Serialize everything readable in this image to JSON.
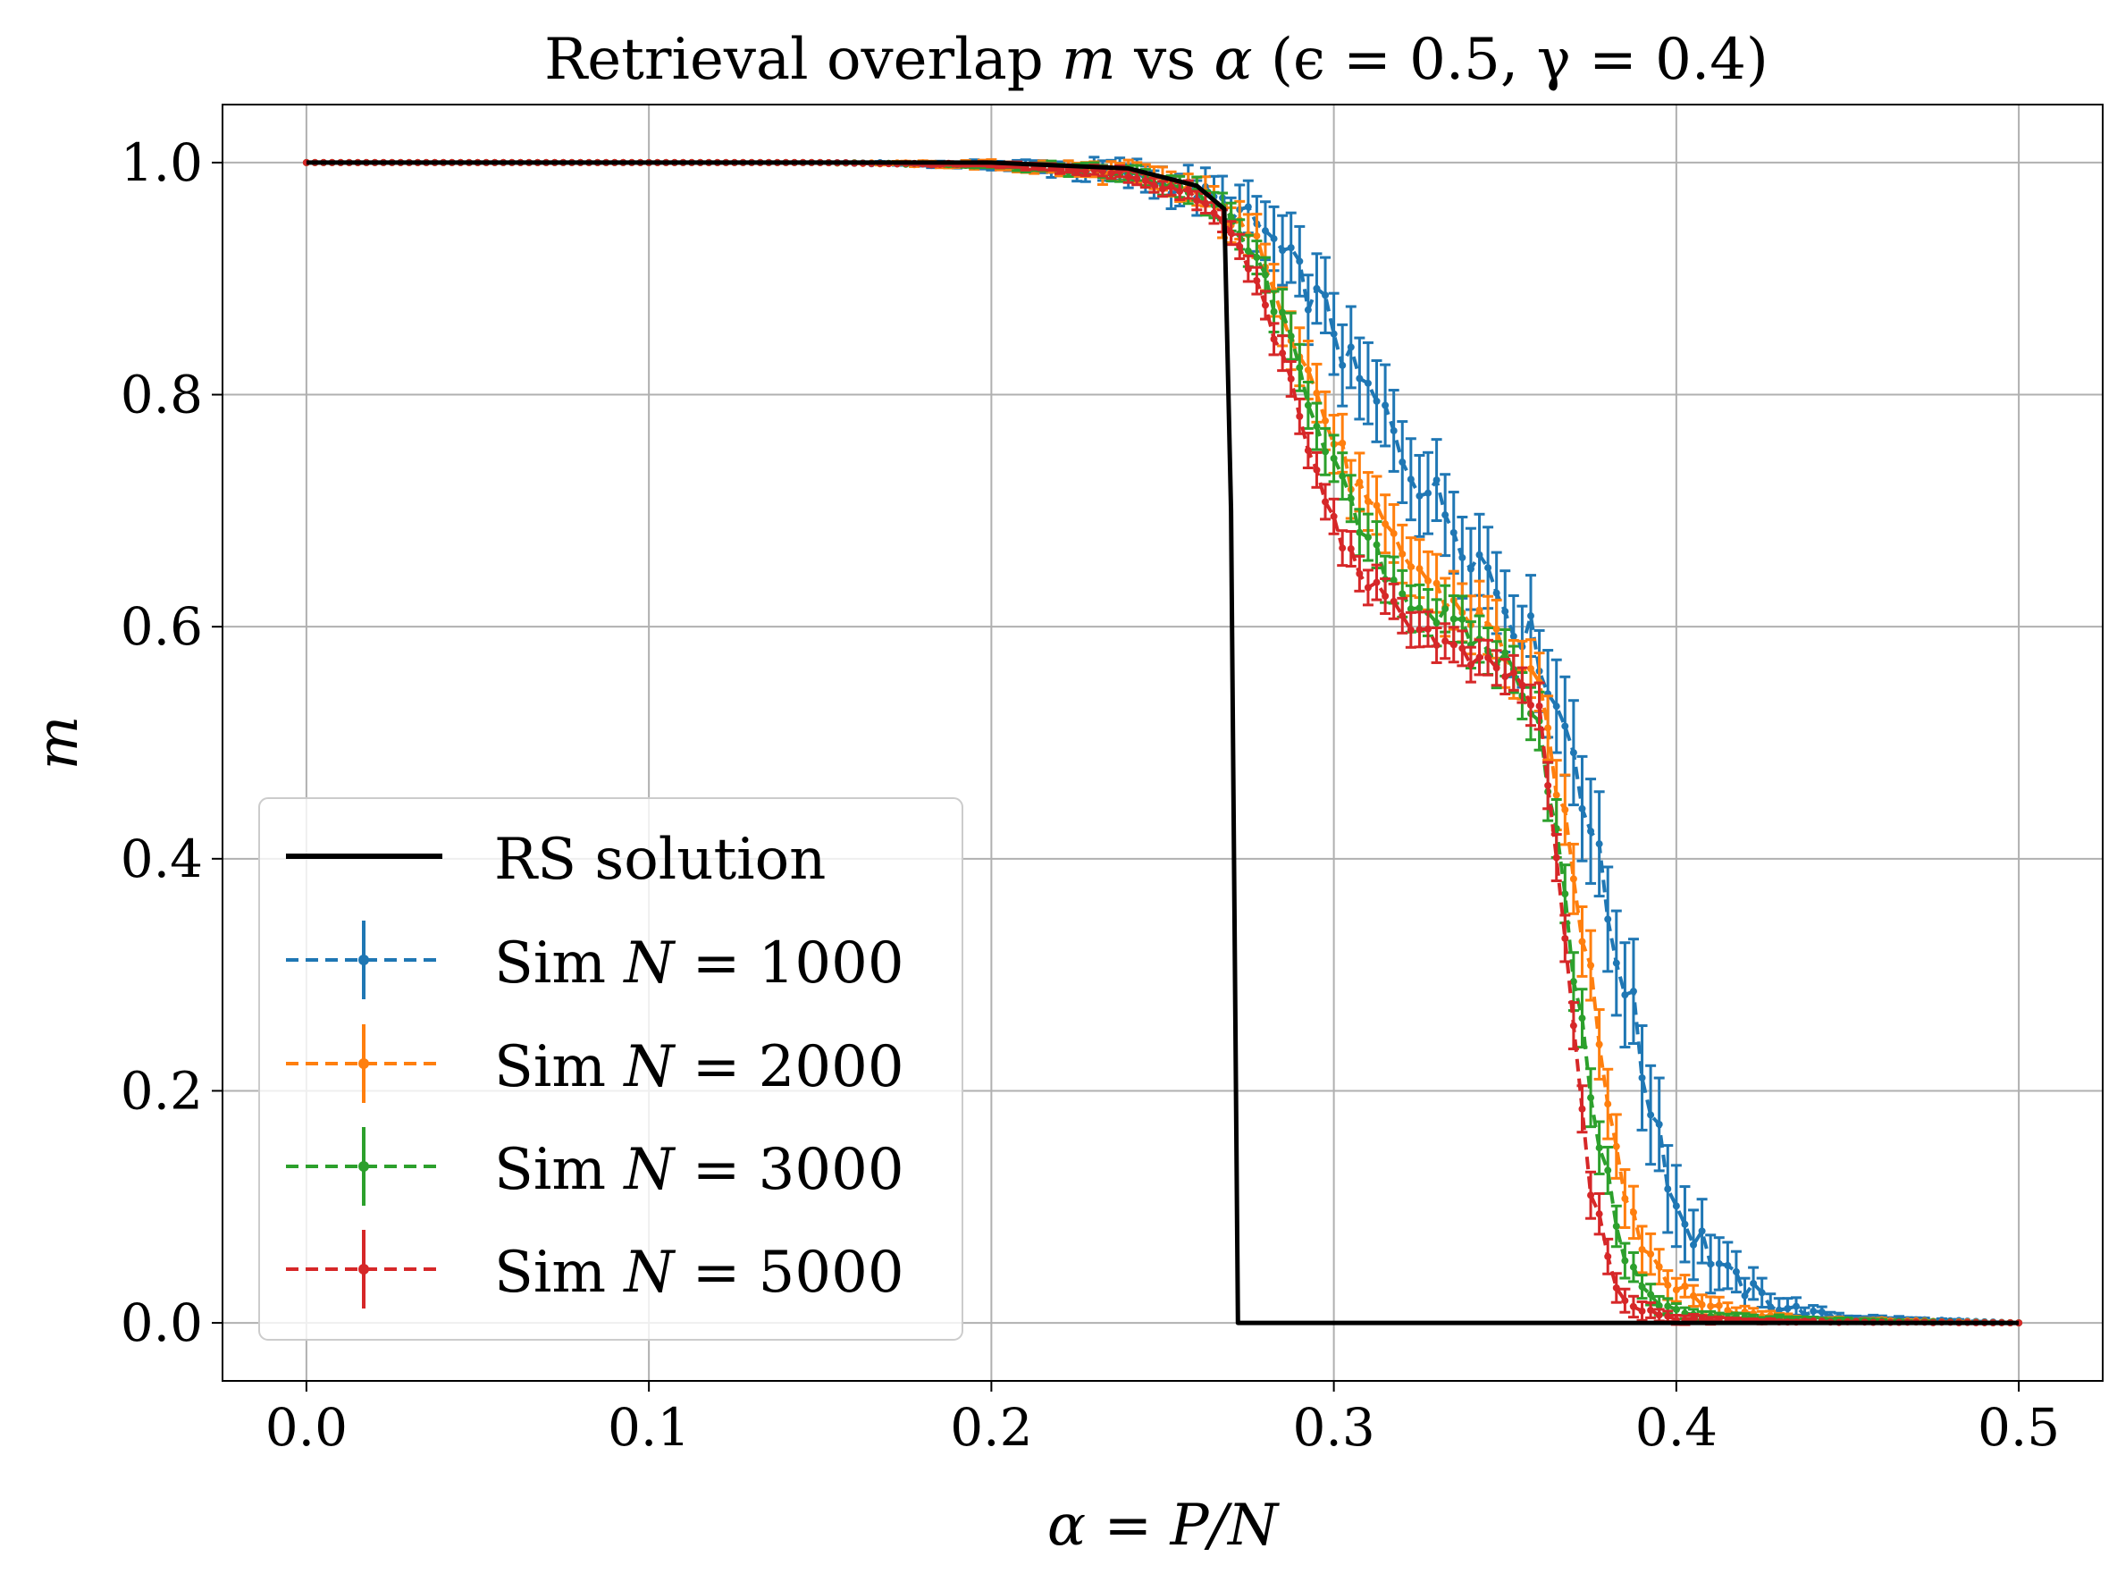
{
  "chart_data": {
    "type": "line",
    "title": {
      "text": "Retrieval overlap m vs α (ϵ = 0.5, γ = 0.4)",
      "prefix": "Retrieval overlap ",
      "var_m": "m",
      "vs": " vs ",
      "var_alpha": "α",
      "params": " (ϵ = 0.5, γ = 0.4)"
    },
    "xlabel": "α = P/N",
    "ylabel": "m",
    "xlim": [
      -0.0245,
      0.5245
    ],
    "ylim": [
      -0.05,
      1.05
    ],
    "xticks": [
      0.0,
      0.1,
      0.2,
      0.3,
      0.4,
      0.5
    ],
    "xtick_labels": [
      "0.0",
      "0.1",
      "0.2",
      "0.3",
      "0.4",
      "0.5"
    ],
    "yticks": [
      0.0,
      0.2,
      0.4,
      0.6,
      0.8,
      1.0
    ],
    "ytick_labels": [
      "0.0",
      "0.2",
      "0.4",
      "0.6",
      "0.8",
      "1.0"
    ],
    "grid": true,
    "legend_position": "lower-left",
    "colors": {
      "rs": "#000000",
      "n1000": "#1f77b4",
      "n2000": "#ff7f0e",
      "n3000": "#2ca02c",
      "n5000": "#d62728",
      "grid": "#b0b0b0"
    },
    "rs_solution": {
      "name": "RS solution",
      "x": [
        0.0,
        0.1,
        0.2,
        0.24,
        0.26,
        0.266,
        0.268,
        0.27,
        0.272,
        0.3,
        0.4,
        0.5
      ],
      "y": [
        1.0,
        1.0,
        1.0,
        0.995,
        0.98,
        0.965,
        0.96,
        0.7,
        0.0,
        0.0,
        0.0,
        0.0
      ]
    },
    "series": [
      {
        "name": "Sim N = 1000",
        "legend_prefix": "Sim ",
        "legend_var": "N",
        "legend_value": " = 1000",
        "color_key": "n1000",
        "x": [
          0.0,
          0.05,
          0.1,
          0.15,
          0.2,
          0.22,
          0.24,
          0.26,
          0.27,
          0.28,
          0.285,
          0.29,
          0.295,
          0.3,
          0.305,
          0.31,
          0.315,
          0.32,
          0.325,
          0.33,
          0.335,
          0.34,
          0.345,
          0.35,
          0.355,
          0.36,
          0.365,
          0.37,
          0.375,
          0.38,
          0.385,
          0.39,
          0.395,
          0.4,
          0.405,
          0.41,
          0.415,
          0.42,
          0.43,
          0.44,
          0.45,
          0.5
        ],
        "y": [
          1.0,
          1.0,
          1.0,
          1.0,
          0.998,
          0.995,
          0.99,
          0.975,
          0.96,
          0.94,
          0.92,
          0.9,
          0.88,
          0.86,
          0.82,
          0.8,
          0.78,
          0.75,
          0.73,
          0.71,
          0.69,
          0.67,
          0.65,
          0.62,
          0.6,
          0.58,
          0.53,
          0.5,
          0.43,
          0.35,
          0.3,
          0.22,
          0.17,
          0.1,
          0.08,
          0.06,
          0.04,
          0.03,
          0.015,
          0.008,
          0.004,
          0.0
        ],
        "err": [
          0.0,
          0.0,
          0.0,
          0.0,
          0.003,
          0.006,
          0.01,
          0.015,
          0.02,
          0.025,
          0.03,
          0.03,
          0.03,
          0.035,
          0.035,
          0.035,
          0.035,
          0.035,
          0.035,
          0.035,
          0.035,
          0.035,
          0.035,
          0.035,
          0.035,
          0.035,
          0.04,
          0.045,
          0.045,
          0.045,
          0.045,
          0.045,
          0.04,
          0.035,
          0.03,
          0.025,
          0.02,
          0.015,
          0.01,
          0.005,
          0.003,
          0.0
        ]
      },
      {
        "name": "Sim N = 2000",
        "legend_prefix": "Sim ",
        "legend_var": "N",
        "legend_value": " = 2000",
        "color_key": "n2000",
        "x": [
          0.0,
          0.05,
          0.1,
          0.15,
          0.2,
          0.22,
          0.24,
          0.26,
          0.27,
          0.28,
          0.285,
          0.29,
          0.295,
          0.3,
          0.305,
          0.31,
          0.315,
          0.32,
          0.325,
          0.33,
          0.335,
          0.34,
          0.345,
          0.35,
          0.355,
          0.36,
          0.365,
          0.37,
          0.375,
          0.38,
          0.385,
          0.39,
          0.395,
          0.4,
          0.41,
          0.42,
          0.44,
          0.5
        ],
        "y": [
          1.0,
          1.0,
          1.0,
          1.0,
          0.998,
          0.995,
          0.99,
          0.975,
          0.95,
          0.92,
          0.88,
          0.84,
          0.8,
          0.76,
          0.73,
          0.7,
          0.68,
          0.66,
          0.65,
          0.63,
          0.62,
          0.61,
          0.6,
          0.58,
          0.56,
          0.54,
          0.47,
          0.38,
          0.3,
          0.2,
          0.12,
          0.07,
          0.05,
          0.03,
          0.015,
          0.008,
          0.003,
          0.0
        ],
        "err": [
          0.0,
          0.0,
          0.0,
          0.0,
          0.003,
          0.005,
          0.008,
          0.012,
          0.015,
          0.02,
          0.025,
          0.025,
          0.025,
          0.025,
          0.025,
          0.025,
          0.025,
          0.025,
          0.025,
          0.025,
          0.025,
          0.025,
          0.025,
          0.025,
          0.025,
          0.025,
          0.03,
          0.03,
          0.03,
          0.03,
          0.025,
          0.02,
          0.015,
          0.01,
          0.008,
          0.005,
          0.002,
          0.0
        ]
      },
      {
        "name": "Sim N = 3000",
        "legend_prefix": "Sim ",
        "legend_var": "N",
        "legend_value": " = 3000",
        "color_key": "n3000",
        "x": [
          0.0,
          0.05,
          0.1,
          0.15,
          0.2,
          0.22,
          0.24,
          0.26,
          0.27,
          0.28,
          0.285,
          0.29,
          0.295,
          0.3,
          0.305,
          0.31,
          0.315,
          0.32,
          0.325,
          0.33,
          0.335,
          0.34,
          0.345,
          0.35,
          0.355,
          0.36,
          0.365,
          0.37,
          0.375,
          0.38,
          0.385,
          0.39,
          0.395,
          0.4,
          0.41,
          0.42,
          0.44,
          0.5
        ],
        "y": [
          1.0,
          1.0,
          1.0,
          1.0,
          0.998,
          0.995,
          0.99,
          0.975,
          0.95,
          0.9,
          0.86,
          0.82,
          0.78,
          0.74,
          0.7,
          0.67,
          0.65,
          0.63,
          0.62,
          0.61,
          0.6,
          0.59,
          0.58,
          0.57,
          0.55,
          0.52,
          0.42,
          0.3,
          0.2,
          0.12,
          0.06,
          0.03,
          0.015,
          0.01,
          0.006,
          0.004,
          0.002,
          0.0
        ],
        "err": [
          0.0,
          0.0,
          0.0,
          0.0,
          0.002,
          0.004,
          0.006,
          0.01,
          0.012,
          0.015,
          0.02,
          0.02,
          0.02,
          0.02,
          0.02,
          0.02,
          0.02,
          0.02,
          0.02,
          0.02,
          0.02,
          0.02,
          0.02,
          0.02,
          0.02,
          0.025,
          0.025,
          0.025,
          0.025,
          0.02,
          0.015,
          0.01,
          0.008,
          0.005,
          0.004,
          0.003,
          0.002,
          0.0
        ]
      },
      {
        "name": "Sim N = 5000",
        "legend_prefix": "Sim ",
        "legend_var": "N",
        "legend_value": " = 5000",
        "color_key": "n5000",
        "x": [
          0.0,
          0.05,
          0.1,
          0.15,
          0.2,
          0.22,
          0.24,
          0.26,
          0.27,
          0.28,
          0.285,
          0.29,
          0.295,
          0.3,
          0.305,
          0.31,
          0.315,
          0.32,
          0.325,
          0.33,
          0.335,
          0.34,
          0.345,
          0.35,
          0.355,
          0.36,
          0.365,
          0.37,
          0.375,
          0.38,
          0.385,
          0.39,
          0.395,
          0.4,
          0.41,
          0.42,
          0.44,
          0.5
        ],
        "y": [
          1.0,
          1.0,
          1.0,
          1.0,
          0.998,
          0.995,
          0.99,
          0.97,
          0.94,
          0.88,
          0.83,
          0.78,
          0.73,
          0.69,
          0.66,
          0.64,
          0.62,
          0.61,
          0.6,
          0.59,
          0.58,
          0.57,
          0.565,
          0.56,
          0.55,
          0.52,
          0.4,
          0.25,
          0.12,
          0.05,
          0.02,
          0.01,
          0.006,
          0.004,
          0.003,
          0.002,
          0.001,
          0.0
        ],
        "err": [
          0.0,
          0.0,
          0.0,
          0.0,
          0.002,
          0.003,
          0.005,
          0.008,
          0.01,
          0.012,
          0.015,
          0.015,
          0.015,
          0.015,
          0.015,
          0.015,
          0.015,
          0.015,
          0.015,
          0.015,
          0.015,
          0.015,
          0.015,
          0.015,
          0.015,
          0.02,
          0.02,
          0.02,
          0.02,
          0.015,
          0.01,
          0.008,
          0.005,
          0.004,
          0.003,
          0.002,
          0.001,
          0.0
        ]
      }
    ]
  }
}
